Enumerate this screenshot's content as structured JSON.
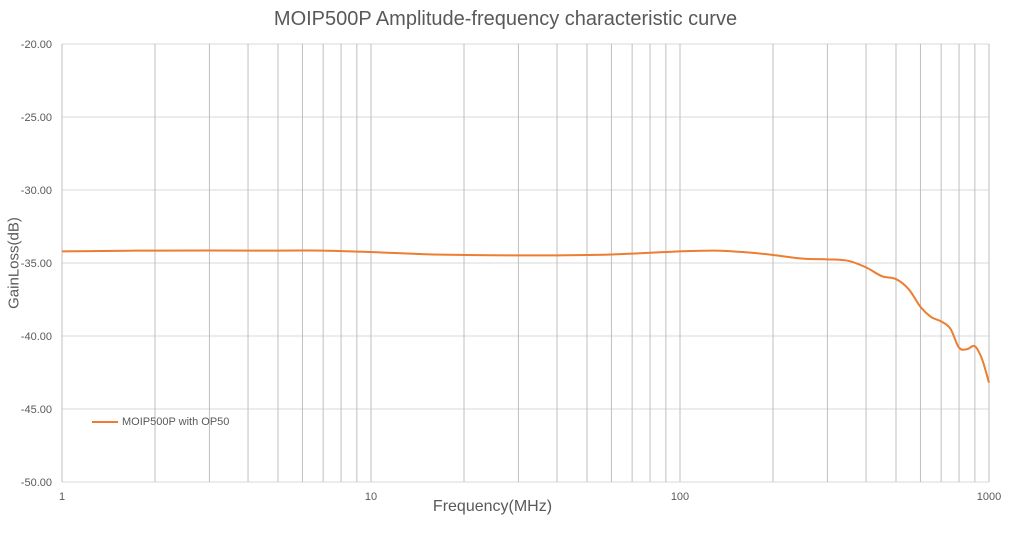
{
  "chart_data": {
    "type": "line",
    "title": "MOIP500P Amplitude-frequency characteristic curve",
    "xlabel": "Frequency(MHz)",
    "ylabel": "GainLoss(dB)",
    "xscale": "log",
    "xlim": [
      1,
      1000
    ],
    "ylim": [
      -50,
      -20
    ],
    "x_tick_labels": [
      {
        "value": 1,
        "label": "1"
      },
      {
        "value": 10,
        "label": "10"
      },
      {
        "value": 100,
        "label": "100"
      },
      {
        "value": 1000,
        "label": "1000"
      }
    ],
    "y_tick_labels": [
      {
        "value": -20,
        "label": "-20.00"
      },
      {
        "value": -25,
        "label": "-25.00"
      },
      {
        "value": -30,
        "label": "-30.00"
      },
      {
        "value": -35,
        "label": "-35.00"
      },
      {
        "value": -40,
        "label": "-40.00"
      },
      {
        "value": -45,
        "label": "-45.00"
      },
      {
        "value": -50,
        "label": "-50.00"
      }
    ],
    "grid": true,
    "legend_position": "bottom-left",
    "series": [
      {
        "name": "MOIP500P with OP50",
        "color": "#ED7D31",
        "x": [
          1,
          2,
          5,
          7,
          10,
          15,
          20,
          30,
          40,
          50,
          60,
          80,
          100,
          130,
          160,
          200,
          250,
          300,
          350,
          400,
          450,
          500,
          550,
          600,
          650,
          700,
          750,
          800,
          850,
          900,
          950,
          1000
        ],
        "y": [
          -34.2,
          -34.15,
          -34.15,
          -34.15,
          -34.25,
          -34.4,
          -34.45,
          -34.48,
          -34.48,
          -34.45,
          -34.42,
          -34.3,
          -34.2,
          -34.15,
          -34.25,
          -34.45,
          -34.7,
          -34.75,
          -34.85,
          -35.3,
          -35.9,
          -36.1,
          -36.8,
          -38.0,
          -38.7,
          -39.0,
          -39.5,
          -40.8,
          -40.9,
          -40.7,
          -41.6,
          -43.2
        ]
      }
    ]
  }
}
